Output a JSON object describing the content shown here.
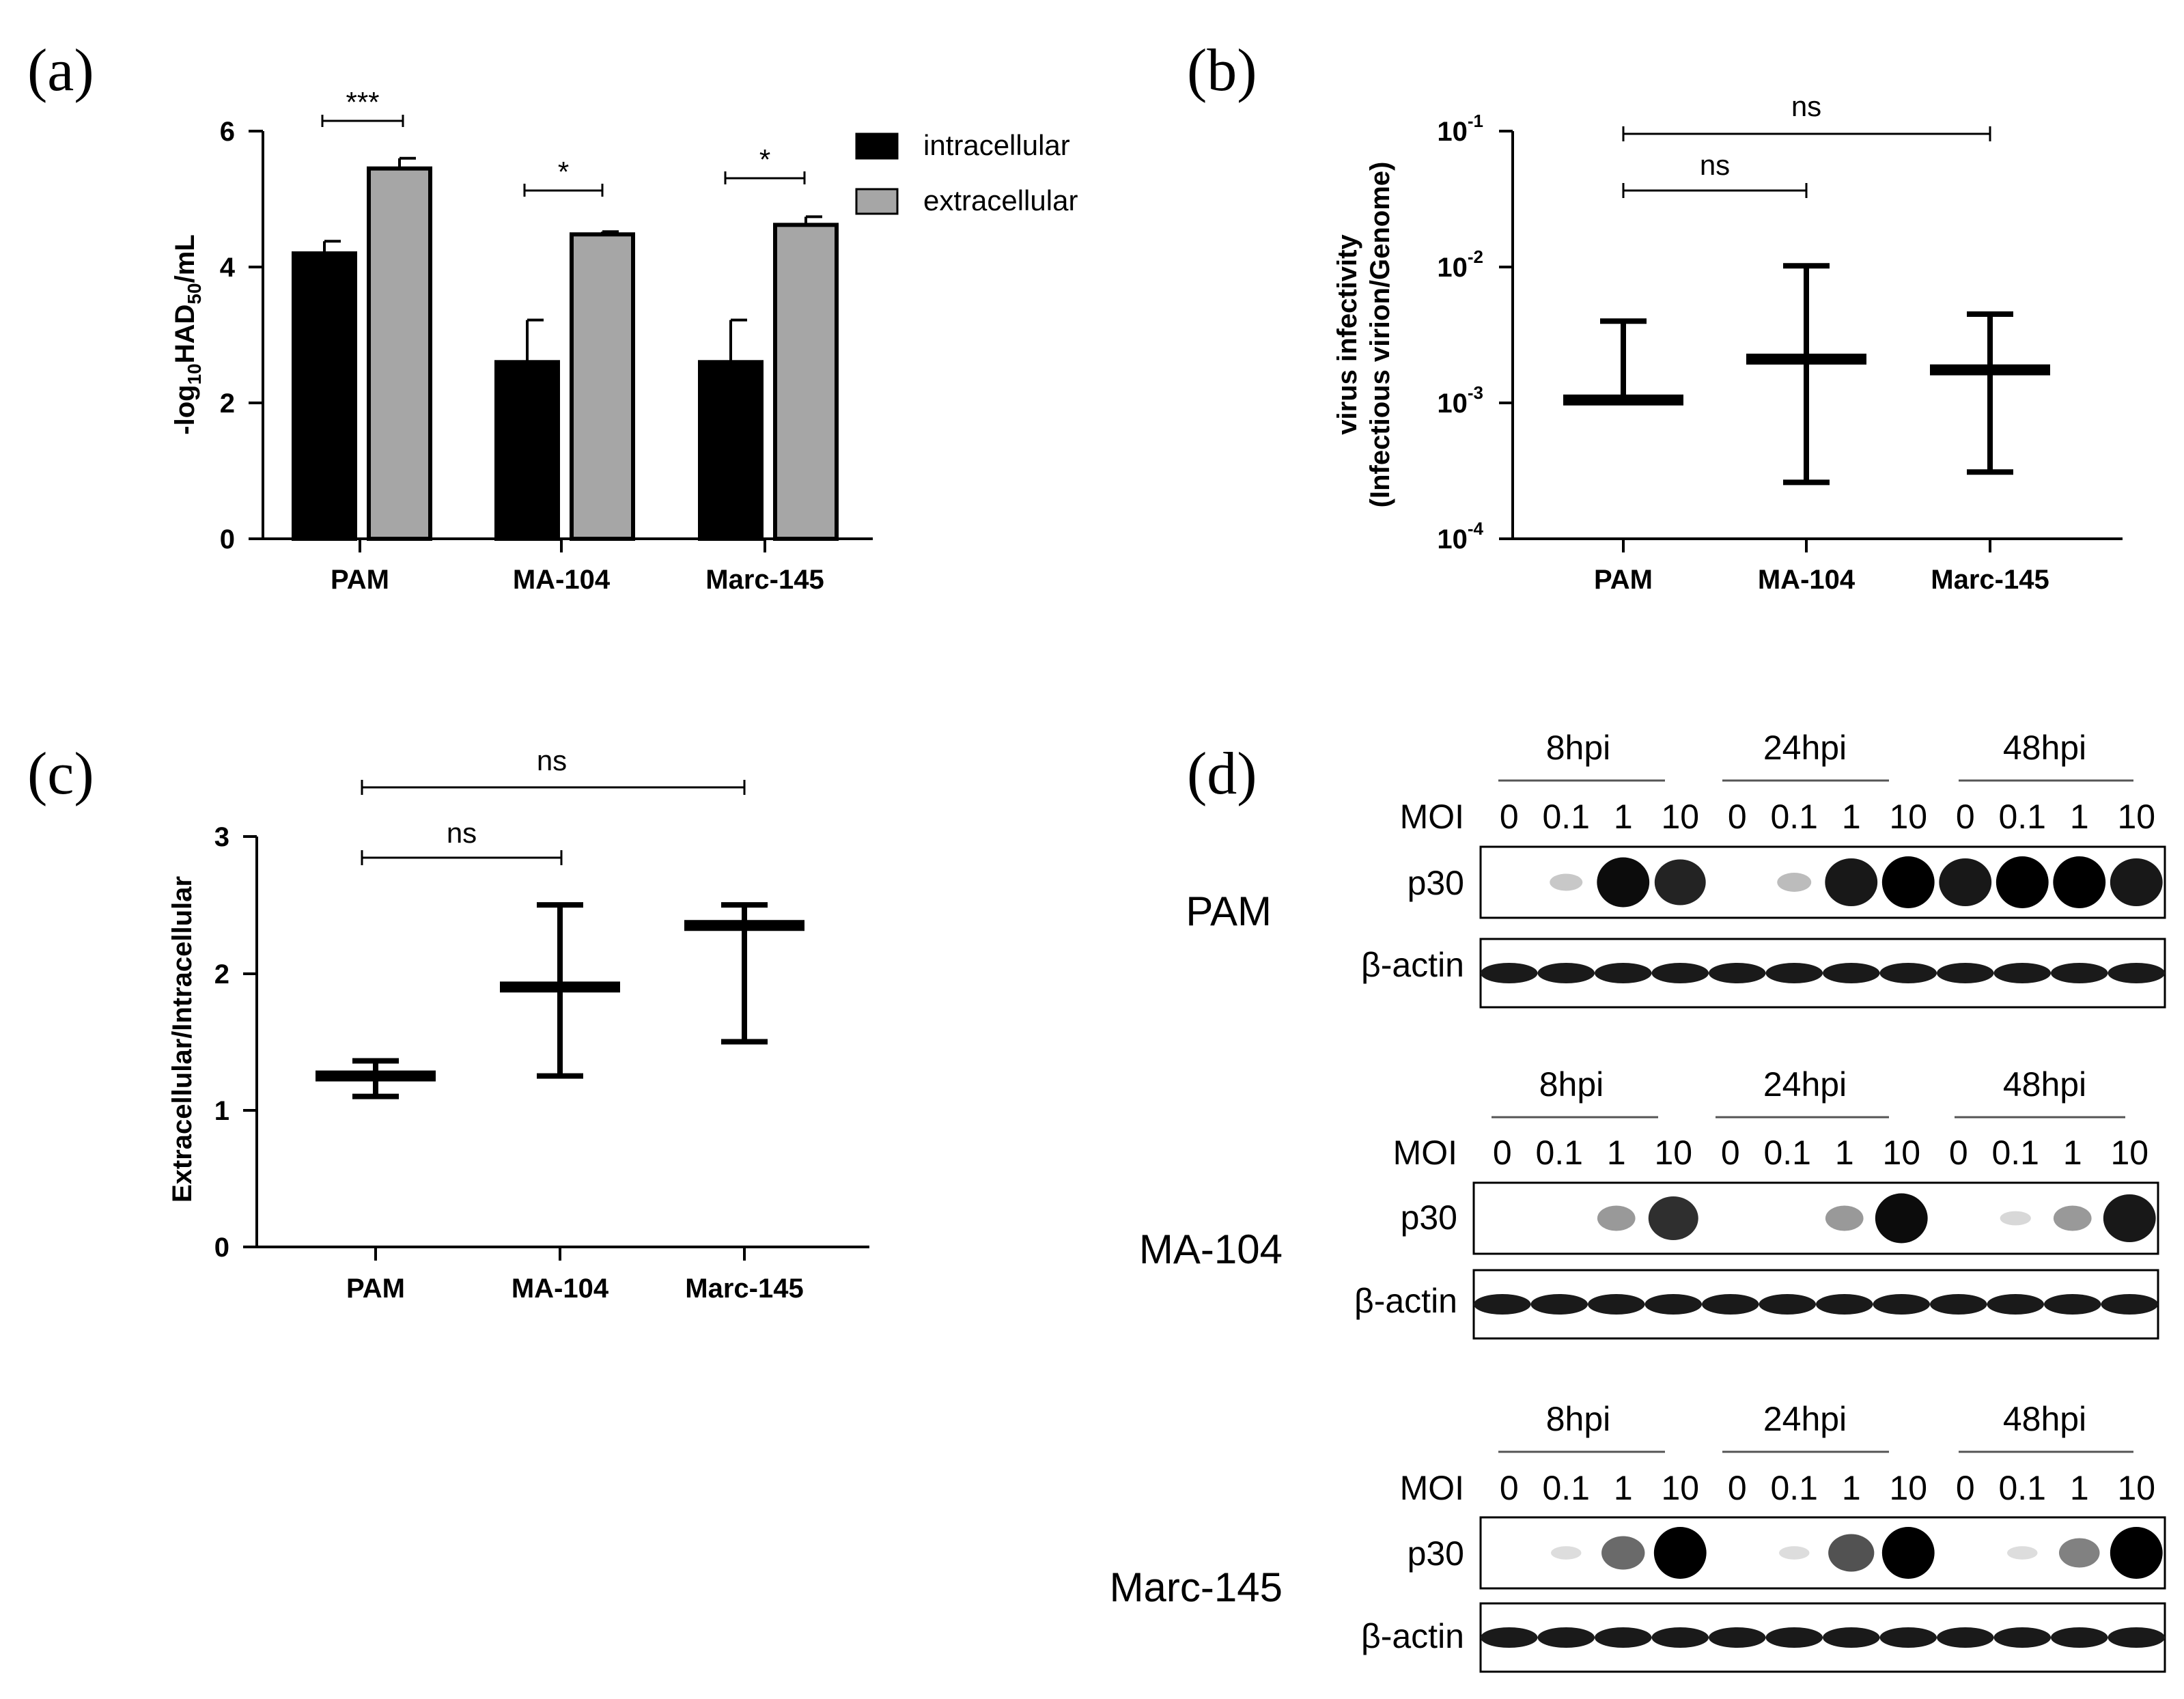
{
  "panels": {
    "a": "(a)",
    "b": "(b)",
    "c": "(c)",
    "d": "(d)"
  },
  "chart_data": [
    {
      "id": "a",
      "type": "bar",
      "title": "",
      "ylabel_main": "-log",
      "ylabel_sub": "10",
      "ylabel_rest": "HAD",
      "ylabel_sub2": "50",
      "ylabel_end": "/mL",
      "categories": [
        "PAM",
        "MA-104",
        "Marc-145"
      ],
      "ylim": [
        0,
        6
      ],
      "yticks": [
        0,
        2,
        4,
        6
      ],
      "legend_position": "top-right",
      "series": [
        {
          "name": "intracellular",
          "color": "#000000",
          "values": [
            4.2,
            2.6,
            2.6
          ],
          "errors": [
            0.18,
            0.62,
            0.62
          ]
        },
        {
          "name": "extracellular",
          "color": "#a6a6a6",
          "values": [
            5.45,
            4.48,
            4.62
          ],
          "errors": [
            0.15,
            0.04,
            0.12
          ]
        }
      ],
      "significance": [
        "***",
        "*",
        "*"
      ]
    },
    {
      "id": "b",
      "type": "scatter",
      "scale": "log",
      "ylabel_line1": "virus infectivity",
      "ylabel_line2": "(Infectious virion/Genome)",
      "categories": [
        "PAM",
        "MA-104",
        "Marc-145"
      ],
      "ylim": [
        0.0001,
        0.1
      ],
      "ytick_base": "10",
      "ytick_exponents": [
        "-4",
        "-3",
        "-2",
        "-1"
      ],
      "mean": [
        0.00105,
        0.0021,
        0.00175
      ],
      "upper": [
        0.004,
        0.0102,
        0.0045
      ],
      "lower": [
        0.00105,
        0.00026,
        0.00031
      ],
      "comparisons": [
        {
          "label": "ns",
          "from": "PAM",
          "to": "MA-104"
        },
        {
          "label": "ns",
          "from": "PAM",
          "to": "Marc-145"
        }
      ]
    },
    {
      "id": "c",
      "type": "scatter",
      "ylabel": "Extracellular/Intracellular",
      "categories": [
        "PAM",
        "MA-104",
        "Marc-145"
      ],
      "ylim": [
        0,
        3
      ],
      "yticks": [
        0,
        1,
        2,
        3
      ],
      "mean": [
        1.25,
        1.9,
        2.35
      ],
      "upper": [
        1.36,
        2.5,
        2.5
      ],
      "lower": [
        1.1,
        1.25,
        1.5
      ],
      "comparisons": [
        {
          "label": "ns",
          "from": "PAM",
          "to": "MA-104"
        },
        {
          "label": "ns",
          "from": "PAM",
          "to": "Marc-145"
        }
      ]
    }
  ],
  "western_blots": {
    "timepoints": [
      "8hpi",
      "24hpi",
      "48hpi"
    ],
    "moi_label": "MOI",
    "moi_values": [
      "0",
      "0.1",
      "1",
      "10"
    ],
    "band_labels": {
      "target": "p30",
      "control": "β-actin"
    },
    "cells": [
      {
        "name": "PAM",
        "p30": [
          0,
          0.15,
          0.95,
          0.85,
          0,
          0.2,
          0.9,
          1.0,
          0.9,
          1.0,
          1.0,
          0.9
        ]
      },
      {
        "name": "MA-104",
        "p30": [
          0,
          0,
          0.35,
          0.8,
          0,
          0,
          0.35,
          0.95,
          0,
          0.08,
          0.35,
          0.9
        ]
      },
      {
        "name": "Marc-145",
        "p30": [
          0,
          0.06,
          0.55,
          1.0,
          0,
          0.06,
          0.65,
          1.0,
          0,
          0.06,
          0.45,
          1.0
        ]
      }
    ]
  }
}
